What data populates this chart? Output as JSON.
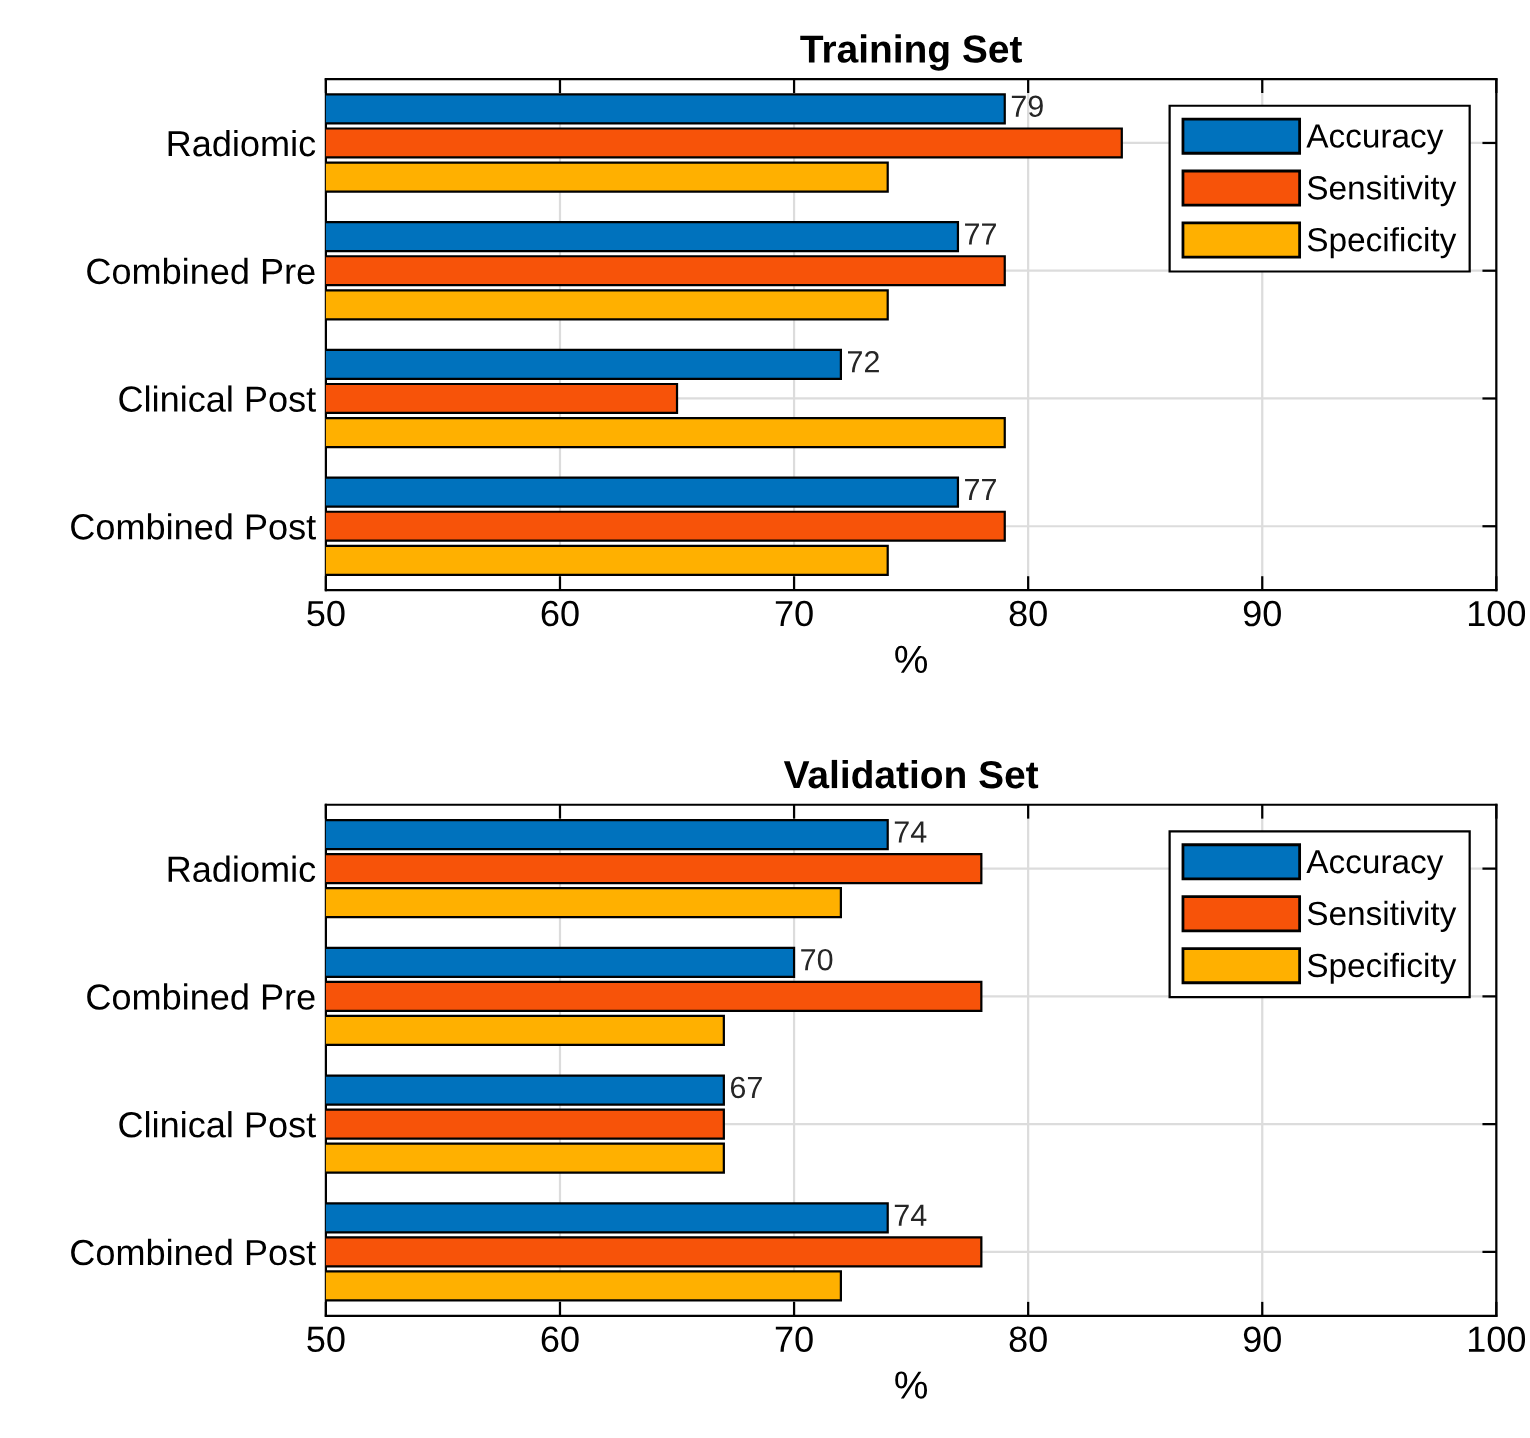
{
  "chart_data": [
    {
      "type": "bar",
      "orientation": "horizontal",
      "title": "Training Set",
      "xlabel": "%",
      "categories": [
        "Radiomic",
        "Combined Pre",
        "Clinical Post",
        "Combined Post"
      ],
      "series": [
        {
          "name": "Accuracy",
          "color": "#0072bd",
          "values": [
            79,
            77,
            72,
            77
          ],
          "value_labels": [
            "79",
            "77",
            "72",
            "77"
          ]
        },
        {
          "name": "Sensitivity",
          "color": "#f75309",
          "values": [
            84,
            79,
            65,
            79
          ]
        },
        {
          "name": "Specificity",
          "color": "#ffb000",
          "values": [
            74,
            74,
            79,
            74
          ]
        }
      ],
      "xlim": [
        50,
        100
      ],
      "xticks": [
        50,
        60,
        70,
        80,
        90,
        100
      ],
      "grid": true,
      "legend": "top right"
    },
    {
      "type": "bar",
      "orientation": "horizontal",
      "title": "Validation Set",
      "xlabel": "%",
      "categories": [
        "Radiomic",
        "Combined Pre",
        "Clinical Post",
        "Combined Post"
      ],
      "series": [
        {
          "name": "Accuracy",
          "color": "#0072bd",
          "values": [
            74,
            70,
            67,
            74
          ],
          "value_labels": [
            "74",
            "70",
            "67",
            "74"
          ]
        },
        {
          "name": "Sensitivity",
          "color": "#f75309",
          "values": [
            78,
            78,
            67,
            78
          ]
        },
        {
          "name": "Specificity",
          "color": "#ffb000",
          "values": [
            72,
            67,
            67,
            72
          ]
        }
      ],
      "xlim": [
        50,
        100
      ],
      "xticks": [
        50,
        60,
        70,
        80,
        90,
        100
      ],
      "grid": true,
      "legend": "top right"
    }
  ]
}
